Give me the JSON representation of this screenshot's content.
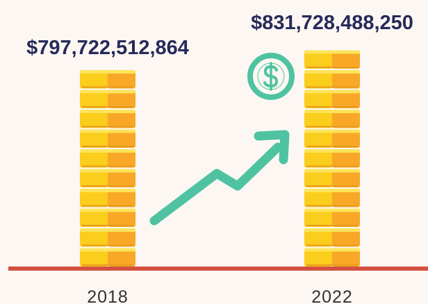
{
  "items": [
    {
      "year": "2018",
      "amount": "$797,722,512,864"
    },
    {
      "year": "2022",
      "amount": "$831,728,488,250"
    }
  ]
}
